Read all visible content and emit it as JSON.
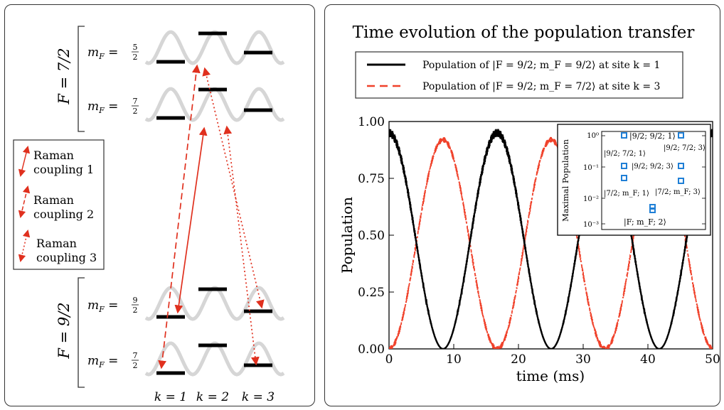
{
  "left": {
    "upper_manifold_label": "F = 7/2",
    "lower_manifold_label": "F = 9/2",
    "upper_levels": [
      {
        "label": "m",
        "sub": "F",
        "eq": " = ",
        "num": "5",
        "den": "2"
      },
      {
        "label": "m",
        "sub": "F",
        "eq": " = ",
        "num": "7",
        "den": "2"
      }
    ],
    "lower_levels": [
      {
        "label": "m",
        "sub": "F",
        "eq": " = ",
        "num": "9",
        "den": "2"
      },
      {
        "label": "m",
        "sub": "F",
        "eq": " = ",
        "num": "7",
        "den": "2"
      }
    ],
    "site_labels": [
      "k = 1",
      "k = 2",
      "k = 3"
    ],
    "legend": [
      {
        "line1": "Raman",
        "line2": "coupling 1",
        "style": "solid"
      },
      {
        "line1": "Raman",
        "line2": "coupling 2",
        "style": "dashed"
      },
      {
        "line1": "Raman",
        "line2": "coupling 3",
        "style": "dotted"
      }
    ],
    "colors": {
      "coupling": "#e0301e",
      "lattice": "#d8d8d8",
      "level": "#000000"
    }
  },
  "right": {
    "title": "Time evolution of the population transfer",
    "legend": [
      {
        "text": "Population of |F = 9/2; m_F = 9/2⟩ at site k = 1",
        "color": "#000000",
        "style": "solid"
      },
      {
        "text": "Population of |F = 9/2; m_F = 7/2⟩ at site k = 3",
        "color": "#f0412a",
        "style": "dashed"
      }
    ],
    "inset": {
      "ylabel": "Maximal Population",
      "yticks": [
        "10⁰",
        "10⁻¹",
        "10⁻²",
        "10⁻³"
      ],
      "labels": [
        "|9/2; 9/2; 1⟩",
        "|9/2; 7/2; 3⟩",
        "|9/2; 7/2; 1⟩",
        "|9/2; 9/2; 3⟩",
        "|7/2; m_F; 1⟩",
        "|7/2; m_F; 3⟩",
        "|F; m_F; 2⟩"
      ],
      "marker_color": "#1f7fd6"
    }
  },
  "chart_data": {
    "type": "line",
    "title": "Time evolution of the population transfer",
    "xlabel": "time (ms)",
    "ylabel": "Population",
    "xlim": [
      0,
      50
    ],
    "ylim": [
      0,
      1
    ],
    "xticks": [
      0,
      10,
      20,
      30,
      40,
      50
    ],
    "yticks": [
      0.0,
      0.25,
      0.5,
      0.75,
      1.0
    ],
    "ytick_labels": [
      "0.00",
      "0.25",
      "0.50",
      "0.75",
      "1.00"
    ],
    "period_ms": 16.7,
    "series": [
      {
        "name": "Population of |F = 9/2; m_F = 9/2⟩ at site k = 1",
        "color": "#000000",
        "style": "solid",
        "x": [
          0,
          4.2,
          8.35,
          12.5,
          16.7,
          20.9,
          25.05,
          29.2,
          33.4,
          37.6,
          41.75,
          45.9,
          50
        ],
        "y": [
          0.95,
          0.5,
          0.0,
          0.5,
          0.95,
          0.5,
          0.0,
          0.5,
          0.95,
          0.5,
          0.0,
          0.5,
          0.95
        ]
      },
      {
        "name": "Population of |F = 9/2; m_F = 7/2⟩ at site k = 3",
        "color": "#f0412a",
        "style": "dashed",
        "x": [
          0,
          4.2,
          8.35,
          12.5,
          16.7,
          20.9,
          25.05,
          29.2,
          33.4,
          37.6,
          41.75,
          45.9,
          50
        ],
        "y": [
          0.0,
          0.46,
          0.92,
          0.46,
          0.0,
          0.46,
          0.92,
          0.46,
          0.0,
          0.46,
          0.92,
          0.46,
          0.0
        ]
      }
    ],
    "inset": {
      "ylabel": "Maximal Population",
      "yscale": "log",
      "ylim": [
        0.0005,
        1.5
      ],
      "points": [
        {
          "label": "|9/2; 9/2; 1⟩",
          "value": 0.95
        },
        {
          "label": "|9/2; 7/2; 3⟩",
          "value": 0.92
        },
        {
          "label": "|9/2; 7/2; 1⟩",
          "value": 0.08
        },
        {
          "label": "|9/2; 9/2; 3⟩",
          "value": 0.08
        },
        {
          "label": "|7/2; m_F; 1⟩",
          "value": 0.03
        },
        {
          "label": "|7/2; m_F; 3⟩",
          "value": 0.025
        },
        {
          "label": "|F; m_F; 2⟩",
          "value": 0.002
        }
      ]
    }
  }
}
